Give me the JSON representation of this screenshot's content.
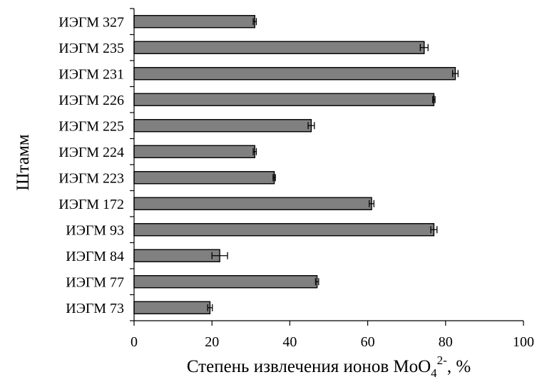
{
  "chart_data": {
    "type": "bar",
    "orientation": "horizontal",
    "categories": [
      "ИЭГМ 327",
      "ИЭГМ 235",
      "ИЭГМ 231",
      "ИЭГМ 226",
      "ИЭГМ 225",
      "ИЭГМ 224",
      "ИЭГМ 223",
      "ИЭГМ 172",
      "ИЭГМ 93",
      "ИЭГМ 84",
      "ИЭГМ 77",
      "ИЭГМ 73"
    ],
    "values": [
      31,
      74.5,
      82.5,
      77,
      45.5,
      31,
      36,
      61,
      77,
      22,
      47,
      19.5
    ],
    "errors": [
      0.4,
      1.0,
      0.7,
      0.3,
      0.8,
      0.4,
      0.3,
      0.6,
      0.8,
      2.0,
      0.4,
      0.6
    ],
    "xlabel_main": "Степень извлечения ионов MoO",
    "xlabel_sub": "4",
    "xlabel_sup": "2-",
    "xlabel_tail": ", %",
    "ylabel": "Штамм",
    "xlim": [
      0,
      100
    ],
    "xticks": [
      0,
      20,
      40,
      60,
      80,
      100
    ],
    "grid": false,
    "legend": "none",
    "colors": {
      "bar": "#808080",
      "edge": "#000000",
      "background": "#ffffff"
    }
  }
}
